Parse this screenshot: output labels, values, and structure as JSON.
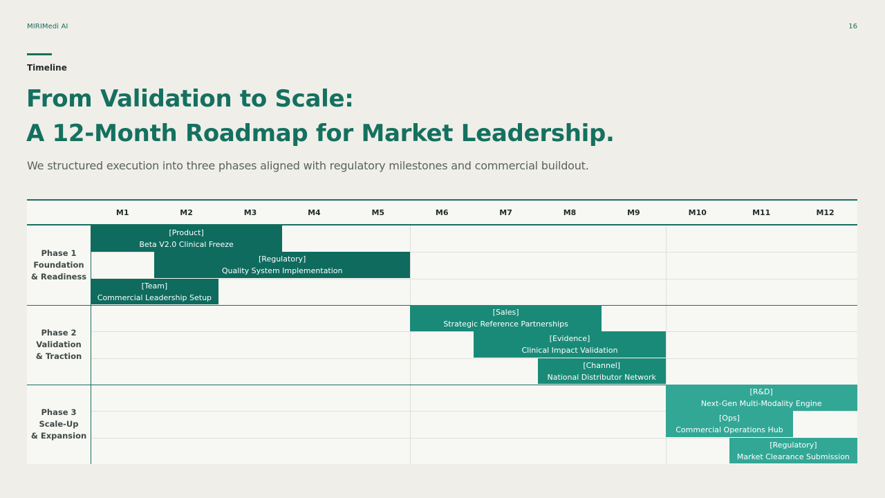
{
  "header": {
    "brand": "MIRIMedi AI",
    "page_number": "16",
    "kicker": "Timeline",
    "title_line1": "From Validation to Scale:",
    "title_line2": "A 12-Month Roadmap for Market Leadership.",
    "subtitle": "We structured execution into three phases aligned with regulatory milestones and commercial buildout."
  },
  "timeline": {
    "months": [
      "M1",
      "M2",
      "M3",
      "M4",
      "M5",
      "M6",
      "M7",
      "M8",
      "M9",
      "M10",
      "M11",
      "M12"
    ],
    "phases": [
      {
        "label_lines": [
          "Phase 1",
          "Foundation",
          "& Readiness"
        ],
        "tasks": [
          {
            "tag": "[Product]",
            "name": "Beta V2.0 Clinical Freeze",
            "start_month": 1,
            "end_month": 3
          },
          {
            "tag": "[Regulatory]",
            "name": "Quality System Implementation",
            "start_month": 2,
            "end_month": 5
          },
          {
            "tag": "[Team]",
            "name": "Commercial Leadership Setup",
            "start_month": 1,
            "end_month": 2
          }
        ]
      },
      {
        "label_lines": [
          "Phase 2",
          "Validation",
          "& Traction"
        ],
        "tasks": [
          {
            "tag": "[Sales]",
            "name": "Strategic Reference Partnerships",
            "start_month": 6,
            "end_month": 8
          },
          {
            "tag": "[Evidence]",
            "name": "Clinical Impact Validation",
            "start_month": 7,
            "end_month": 9
          },
          {
            "tag": "[Channel]",
            "name": "National Distributor Network",
            "start_month": 8,
            "end_month": 9
          }
        ]
      },
      {
        "label_lines": [
          "Phase 3",
          "Scale-Up",
          "& Expansion"
        ],
        "tasks": [
          {
            "tag": "[R&D]",
            "name": "Next-Gen Multi-Modality Engine",
            "start_month": 10,
            "end_month": 12
          },
          {
            "tag": "[Ops]",
            "name": "Commercial Operations Hub",
            "start_month": 10,
            "end_month": 11
          },
          {
            "tag": "[Regulatory]",
            "name": "Market Clearance Submission",
            "start_month": 11,
            "end_month": 12
          }
        ]
      }
    ]
  },
  "colors": {
    "accent": "#15705f",
    "phase1_bar": "#0e6b5e",
    "phase2_bar": "#1a8a78",
    "phase3_bar": "#33a796",
    "background": "#efeee9"
  }
}
